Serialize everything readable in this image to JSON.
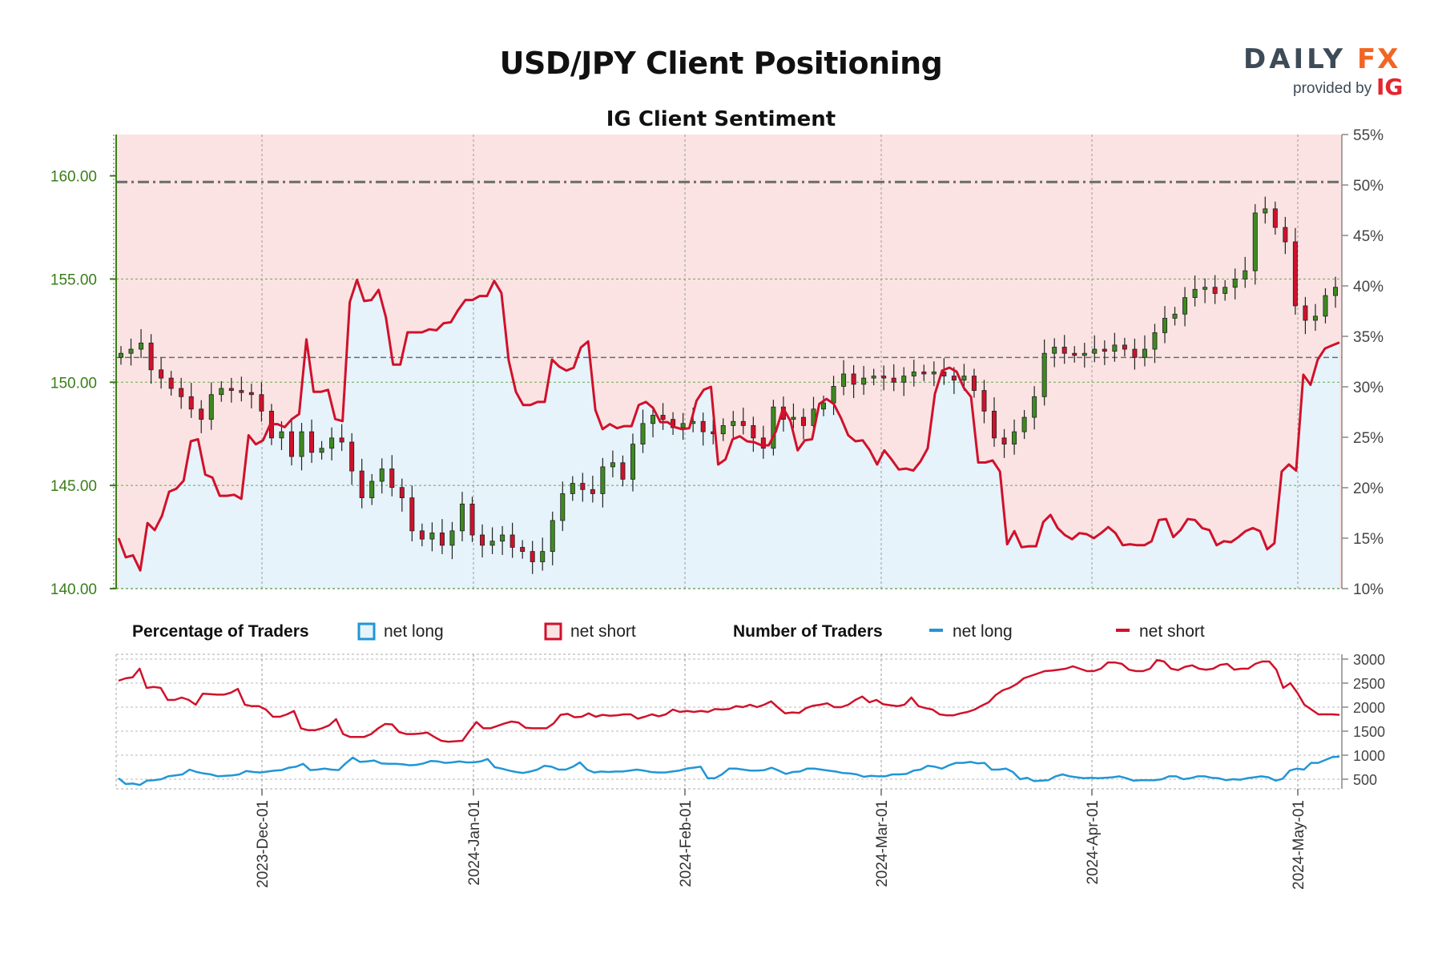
{
  "title": "USD/JPY Client Positioning",
  "subtitle": "IG Client Sentiment",
  "logo": {
    "word_daily": "DAILY",
    "word_fx": "FX",
    "provided_by": "provided by",
    "ig": "IG"
  },
  "colors": {
    "net_long": "#2196d6",
    "net_short": "#d0112b",
    "long_fill": "#e6f3fb",
    "short_fill": "#fbe3e3",
    "candle_up": "#3d8b1f",
    "candle_down": "#d0112b",
    "left_axis": "#3a7d1a"
  },
  "legend": {
    "pct_heading": "Percentage of Traders",
    "pct_long": "net long",
    "pct_short": "net short",
    "num_heading": "Number of Traders",
    "num_long": "net long",
    "num_short": "net short"
  },
  "chart_data": [
    {
      "type": "candlestick",
      "title": "USD/JPY Client Positioning",
      "subtitle": "IG Client Sentiment",
      "y_left_ticks": [
        "140.00",
        "145.00",
        "150.00",
        "155.00",
        "160.00"
      ],
      "y_left_range": [
        140,
        162
      ],
      "y_right_ticks": [
        "10%",
        "15%",
        "20%",
        "25%",
        "30%",
        "35%",
        "40%",
        "45%",
        "50%",
        "55%"
      ],
      "y_right_range": [
        10,
        55
      ],
      "x_ticks": [
        "2023-Dec-01",
        "2024-Jan-01",
        "2024-Feb-01",
        "2024-Mar-01",
        "2024-Apr-01",
        "2024-May-01"
      ],
      "reference_lines": [
        159.7,
        151.2,
        155.0,
        150.0,
        145.0
      ],
      "price_closes": [
        151.4,
        151.6,
        151.9,
        150.6,
        150.2,
        149.7,
        149.3,
        148.7,
        148.2,
        149.4,
        149.7,
        149.6,
        149.5,
        149.4,
        148.6,
        147.3,
        147.6,
        146.4,
        147.6,
        146.6,
        146.8,
        147.3,
        147.1,
        145.7,
        144.4,
        145.2,
        145.8,
        144.9,
        144.4,
        142.8,
        142.4,
        142.7,
        142.1,
        142.8,
        144.1,
        142.6,
        142.1,
        142.3,
        142.6,
        142.0,
        141.8,
        141.3,
        141.8,
        143.3,
        144.6,
        145.1,
        144.8,
        144.6,
        145.9,
        146.1,
        145.3,
        147.0,
        148.0,
        148.4,
        148.2,
        147.8,
        148.0,
        148.1,
        147.6,
        147.5,
        147.9,
        148.1,
        147.9,
        147.3,
        146.8,
        148.8,
        148.2,
        148.3,
        147.9,
        148.7,
        149.0,
        149.8,
        150.4,
        149.9,
        150.2,
        150.3,
        150.2,
        150.0,
        150.3,
        150.5,
        150.4,
        150.5,
        150.3,
        150.1,
        150.3,
        149.6,
        148.6,
        147.3,
        147.0,
        147.6,
        148.3,
        149.3,
        151.4,
        151.7,
        151.4,
        151.3,
        151.4,
        151.6,
        151.5,
        151.8,
        151.6,
        151.2,
        151.6,
        152.4,
        153.1,
        153.3,
        154.1,
        154.5,
        154.6,
        154.3,
        154.6,
        155.0,
        155.4,
        158.2,
        158.4,
        157.5,
        156.8,
        153.7,
        153.0,
        153.2,
        154.2,
        154.6
      ],
      "pct_net_long": [
        15.0,
        13.1,
        13.3,
        11.8,
        16.5,
        15.8,
        17.2,
        19.6,
        19.9,
        20.7,
        24.6,
        24.8,
        21.3,
        21.0,
        19.2,
        19.2,
        19.3,
        18.9,
        25.2,
        24.3,
        24.7,
        26.3,
        26.3,
        26.0,
        26.8,
        27.3,
        34.7,
        29.5,
        29.5,
        29.7,
        26.8,
        26.6,
        38.4,
        40.6,
        38.5,
        38.6,
        39.6,
        36.9,
        32.2,
        32.2,
        35.4,
        35.4,
        35.4,
        35.7,
        35.6,
        36.3,
        36.4,
        37.6,
        38.6,
        38.6,
        39.0,
        39.0,
        40.5,
        39.3,
        32.6,
        29.5,
        28.2,
        28.2,
        28.5,
        28.5,
        32.7,
        32.0,
        31.6,
        31.9,
        33.9,
        34.5,
        27.7,
        25.8,
        26.3,
        25.9,
        26.1,
        26.1,
        28.2,
        28.5,
        27.9,
        26.5,
        26.5,
        26.0,
        25.8,
        25.9,
        28.6,
        29.7,
        30.0,
        22.3,
        22.8,
        24.8,
        25.1,
        24.6,
        24.5,
        24.2,
        24.2,
        25.6,
        27.9,
        26.6,
        23.7,
        24.7,
        24.8,
        28.3,
        28.8,
        28.3,
        26.9,
        25.2,
        24.6,
        24.7,
        23.7,
        22.3,
        23.7,
        22.8,
        21.8,
        21.9,
        21.7,
        22.6,
        23.9,
        29.3,
        31.6,
        31.9,
        31.5,
        29.9,
        29.0,
        22.5,
        22.5,
        22.7,
        21.6,
        14.4,
        15.7,
        14.1,
        14.2,
        14.2,
        16.6,
        17.3,
        16.0,
        15.3,
        14.9,
        15.5,
        15.4,
        15.0,
        15.5,
        16.1,
        15.5,
        14.3,
        14.4,
        14.3,
        14.3,
        14.7,
        16.8,
        16.9,
        15.1,
        15.8,
        16.9,
        16.8,
        16.0,
        15.8,
        14.3,
        14.7,
        14.6,
        15.1,
        15.7,
        16.0,
        15.7,
        13.9,
        14.5,
        21.6,
        22.3,
        21.7,
        31.2,
        30.2,
        32.7,
        33.8,
        34.1,
        34.4
      ]
    },
    {
      "type": "line",
      "title": "Number of Traders",
      "y_ticks": [
        "500",
        "1000",
        "1500",
        "2000",
        "2500",
        "3000"
      ],
      "y_range": [
        300,
        3100
      ],
      "x_ticks": [
        "2023-Dec-01",
        "2024-Jan-01",
        "2024-Feb-01",
        "2024-Mar-01",
        "2024-Apr-01",
        "2024-May-01"
      ],
      "series": [
        {
          "name": "net long",
          "values": [
            520,
            400,
            410,
            380,
            470,
            480,
            500,
            560,
            580,
            600,
            700,
            650,
            620,
            600,
            560,
            570,
            580,
            600,
            670,
            650,
            640,
            660,
            680,
            690,
            740,
            760,
            820,
            690,
            700,
            720,
            700,
            690,
            830,
            950,
            860,
            870,
            890,
            830,
            820,
            820,
            810,
            790,
            800,
            830,
            880,
            870,
            840,
            850,
            870,
            850,
            850,
            870,
            920,
            750,
            720,
            680,
            650,
            630,
            660,
            700,
            780,
            760,
            700,
            700,
            760,
            850,
            700,
            640,
            660,
            650,
            660,
            660,
            680,
            700,
            680,
            650,
            640,
            640,
            660,
            680,
            720,
            740,
            760,
            520,
            520,
            600,
            720,
            720,
            700,
            680,
            680,
            690,
            740,
            680,
            610,
            650,
            660,
            720,
            720,
            700,
            680,
            660,
            630,
            620,
            600,
            550,
            570,
            560,
            560,
            600,
            600,
            610,
            680,
            700,
            780,
            760,
            720,
            790,
            840,
            840,
            860,
            830,
            840,
            700,
            700,
            720,
            650,
            500,
            530,
            460,
            470,
            480,
            560,
            600,
            560,
            540,
            520,
            530,
            520,
            530,
            540,
            560,
            520,
            470,
            480,
            480,
            480,
            500,
            560,
            560,
            500,
            520,
            560,
            560,
            530,
            520,
            480,
            500,
            490,
            520,
            540,
            560,
            540,
            470,
            510,
            680,
            720,
            700,
            840,
            840,
            900,
            960,
            970
          ]
        },
        {
          "name": "net short",
          "values": [
            2550,
            2600,
            2620,
            2800,
            2400,
            2420,
            2400,
            2150,
            2150,
            2200,
            2150,
            2050,
            2280,
            2270,
            2260,
            2260,
            2300,
            2380,
            2050,
            2020,
            2020,
            1950,
            1800,
            1800,
            1850,
            1920,
            1560,
            1520,
            1520,
            1560,
            1620,
            1750,
            1440,
            1380,
            1380,
            1380,
            1440,
            1560,
            1650,
            1640,
            1480,
            1440,
            1440,
            1450,
            1470,
            1380,
            1300,
            1280,
            1290,
            1300,
            1500,
            1690,
            1560,
            1560,
            1610,
            1660,
            1700,
            1680,
            1570,
            1560,
            1560,
            1560,
            1660,
            1840,
            1860,
            1790,
            1800,
            1870,
            1800,
            1840,
            1820,
            1830,
            1850,
            1850,
            1760,
            1800,
            1850,
            1810,
            1850,
            1950,
            1900,
            1920,
            1900,
            1920,
            1900,
            1960,
            1950,
            1960,
            2020,
            2000,
            2050,
            2000,
            2050,
            2120,
            1990,
            1870,
            1890,
            1880,
            1980,
            2030,
            2050,
            2080,
            2000,
            2000,
            2050,
            2150,
            2220,
            2100,
            2150,
            2060,
            2040,
            2020,
            2050,
            2200,
            2020,
            1980,
            1950,
            1850,
            1830,
            1830,
            1870,
            1900,
            1950,
            2030,
            2100,
            2250,
            2350,
            2400,
            2480,
            2600,
            2650,
            2700,
            2750,
            2760,
            2780,
            2800,
            2850,
            2800,
            2750,
            2750,
            2800,
            2930,
            2930,
            2900,
            2780,
            2750,
            2750,
            2800,
            2980,
            2950,
            2800,
            2770,
            2840,
            2870,
            2800,
            2780,
            2800,
            2880,
            2900,
            2780,
            2800,
            2800,
            2900,
            2950,
            2950,
            2780,
            2400,
            2500,
            2300,
            2050,
            1950,
            1850,
            1850,
            1850,
            1840
          ]
        }
      ]
    }
  ]
}
